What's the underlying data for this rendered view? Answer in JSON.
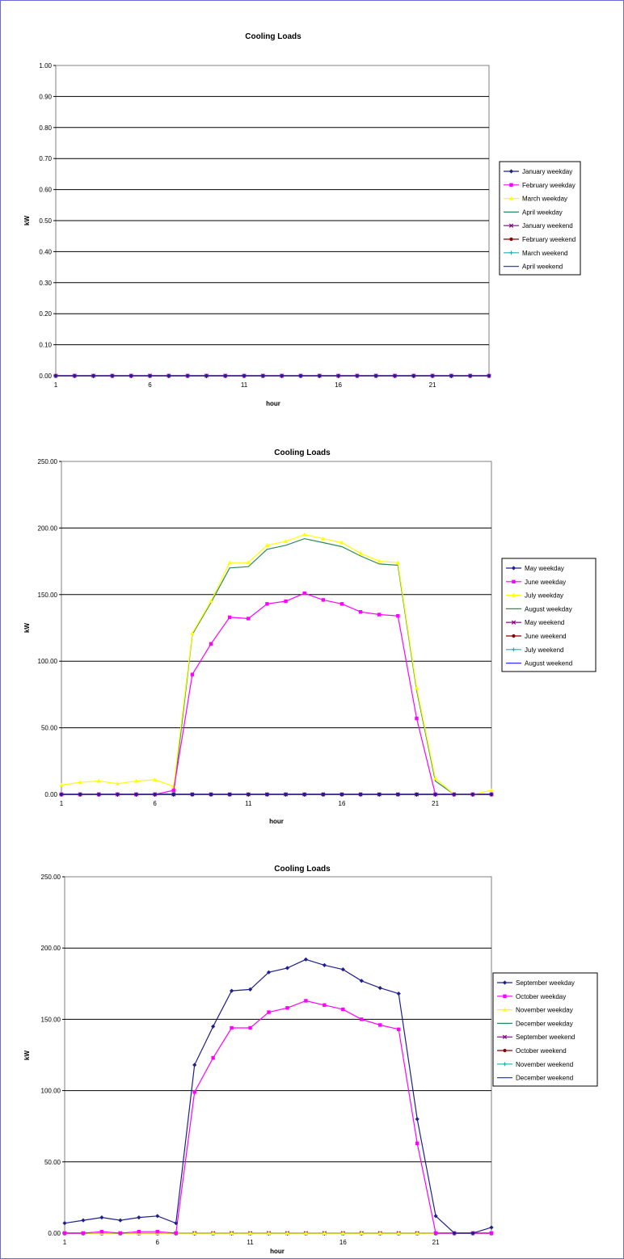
{
  "chart_data": [
    {
      "type": "line",
      "title": "Cooling Loads",
      "xlabel": "hour",
      "ylabel": "kW",
      "ylim": [
        0,
        1
      ],
      "ystep": 0.1,
      "xlim": [
        1,
        24
      ],
      "xticks": [
        1,
        6,
        11,
        16,
        21
      ],
      "grid": "horizontal",
      "legend": "right",
      "series": [
        {
          "name": "January weekday",
          "color": "#1f1f8f",
          "marker": "diamond",
          "values": [
            0,
            0,
            0,
            0,
            0,
            0,
            0,
            0,
            0,
            0,
            0,
            0,
            0,
            0,
            0,
            0,
            0,
            0,
            0,
            0,
            0,
            0,
            0,
            0
          ]
        },
        {
          "name": "February weekday",
          "color": "#ff00ff",
          "marker": "square",
          "values": [
            0,
            0,
            0,
            0,
            0,
            0,
            0,
            0,
            0,
            0,
            0,
            0,
            0,
            0,
            0,
            0,
            0,
            0,
            0,
            0,
            0,
            0,
            0,
            0
          ]
        },
        {
          "name": "March weekday",
          "color": "#ffff00",
          "marker": "triangle",
          "values": [
            0,
            0,
            0,
            0,
            0,
            0,
            0,
            0,
            0,
            0,
            0,
            0,
            0,
            0,
            0,
            0,
            0,
            0,
            0,
            0,
            0,
            0,
            0,
            0
          ]
        },
        {
          "name": "April weekday",
          "color": "#2e8b57",
          "marker": "none",
          "values": [
            0,
            0,
            0,
            0,
            0,
            0,
            0,
            0,
            0,
            0,
            0,
            0,
            0,
            0,
            0,
            0,
            0,
            0,
            0,
            0,
            0,
            0,
            0,
            0
          ]
        },
        {
          "name": "January weekend",
          "color": "#800080",
          "marker": "x",
          "values": [
            0,
            0,
            0,
            0,
            0,
            0,
            0,
            0,
            0,
            0,
            0,
            0,
            0,
            0,
            0,
            0,
            0,
            0,
            0,
            0,
            0,
            0,
            0,
            0
          ]
        },
        {
          "name": "February weekend",
          "color": "#8b0000",
          "marker": "circle",
          "values": [
            0,
            0,
            0,
            0,
            0,
            0,
            0,
            0,
            0,
            0,
            0,
            0,
            0,
            0,
            0,
            0,
            0,
            0,
            0,
            0,
            0,
            0,
            0,
            0
          ]
        },
        {
          "name": "March weekend",
          "color": "#20b2aa",
          "marker": "plus",
          "values": [
            0,
            0,
            0,
            0,
            0,
            0,
            0,
            0,
            0,
            0,
            0,
            0,
            0,
            0,
            0,
            0,
            0,
            0,
            0,
            0,
            0,
            0,
            0,
            0
          ]
        },
        {
          "name": "April weekend",
          "color": "#3333ff",
          "marker": "none",
          "values": [
            0,
            0,
            0,
            0,
            0,
            0,
            0,
            0,
            0,
            0,
            0,
            0,
            0,
            0,
            0,
            0,
            0,
            0,
            0,
            0,
            0,
            0,
            0,
            0
          ]
        }
      ]
    },
    {
      "type": "line",
      "title": "Cooling Loads",
      "xlabel": "hour",
      "ylabel": "kW",
      "ylim": [
        0,
        250
      ],
      "ystep": 50,
      "xlim": [
        1,
        24
      ],
      "xticks": [
        1,
        6,
        11,
        16,
        21
      ],
      "grid": "horizontal",
      "legend": "right",
      "series": [
        {
          "name": "May weekday",
          "color": "#1f1f8f",
          "marker": "diamond",
          "values": [
            0,
            0,
            0,
            0,
            0,
            0,
            0,
            0,
            0,
            0,
            0,
            0,
            0,
            0,
            0,
            0,
            0,
            0,
            0,
            0,
            0,
            0,
            0,
            0
          ]
        },
        {
          "name": "June weekday",
          "color": "#ff00ff",
          "marker": "square",
          "values": [
            0,
            0,
            0,
            0,
            0,
            0,
            3,
            90,
            113,
            133,
            132,
            143,
            145,
            151,
            146,
            143,
            137,
            135,
            134,
            57,
            0,
            0,
            0,
            0
          ]
        },
        {
          "name": "July weekday",
          "color": "#ffff00",
          "marker": "triangle",
          "values": [
            7,
            9,
            10,
            8,
            10,
            11,
            6,
            121,
            145,
            174,
            174,
            187,
            190,
            195,
            192,
            189,
            181,
            175,
            174,
            80,
            12,
            0,
            0,
            3
          ]
        },
        {
          "name": "August weekday",
          "color": "#2e8b57",
          "marker": "none",
          "values": [
            0,
            0,
            0,
            0,
            0,
            0,
            0,
            120,
            144,
            170,
            171,
            184,
            187,
            192,
            189,
            186,
            179,
            173,
            172,
            78,
            10,
            0,
            0,
            0
          ]
        },
        {
          "name": "May weekend",
          "color": "#800080",
          "marker": "x",
          "values": [
            0,
            0,
            0,
            0,
            0,
            0,
            0,
            0,
            0,
            0,
            0,
            0,
            0,
            0,
            0,
            0,
            0,
            0,
            0,
            0,
            0,
            0,
            0,
            0
          ]
        },
        {
          "name": "June weekend",
          "color": "#8b0000",
          "marker": "circle",
          "values": [
            0,
            0,
            0,
            0,
            0,
            0,
            0,
            0,
            0,
            0,
            0,
            0,
            0,
            0,
            0,
            0,
            0,
            0,
            0,
            0,
            0,
            0,
            0,
            0
          ]
        },
        {
          "name": "July weekend",
          "color": "#20b2aa",
          "marker": "plus",
          "values": [
            0,
            0,
            0,
            0,
            0,
            0,
            0,
            0,
            0,
            0,
            0,
            0,
            0,
            0,
            0,
            0,
            0,
            0,
            0,
            0,
            0,
            0,
            0,
            0
          ]
        },
        {
          "name": "August weekend",
          "color": "#3333ff",
          "marker": "none",
          "values": [
            0,
            0,
            0,
            0,
            0,
            0,
            0,
            0,
            0,
            0,
            0,
            0,
            0,
            0,
            0,
            0,
            0,
            0,
            0,
            0,
            0,
            0,
            0,
            0
          ]
        }
      ]
    },
    {
      "type": "line",
      "title": "Cooling Loads",
      "xlabel": "hour",
      "ylabel": "kW",
      "ylim": [
        0,
        250
      ],
      "ystep": 50,
      "xlim": [
        1,
        24
      ],
      "xticks": [
        1,
        6,
        11,
        16,
        21
      ],
      "grid": "horizontal",
      "legend": "right",
      "series": [
        {
          "name": "September weekday",
          "color": "#1f1f8f",
          "marker": "diamond",
          "values": [
            7,
            9,
            11,
            9,
            11,
            12,
            7,
            118,
            145,
            170,
            171,
            183,
            186,
            192,
            188,
            185,
            177,
            172,
            168,
            80,
            12,
            0,
            0,
            4
          ]
        },
        {
          "name": "October weekday",
          "color": "#ff00ff",
          "marker": "square",
          "values": [
            0,
            0,
            1,
            0,
            1,
            1,
            0,
            99,
            123,
            144,
            144,
            155,
            158,
            163,
            160,
            157,
            150,
            146,
            143,
            63,
            0,
            0,
            0,
            0
          ]
        },
        {
          "name": "November weekday",
          "color": "#ffff00",
          "marker": "triangle",
          "values": [
            0,
            0,
            0,
            0,
            0,
            0,
            0,
            0,
            0,
            0,
            0,
            0,
            0,
            0,
            0,
            0,
            0,
            0,
            0,
            0,
            0,
            0,
            0,
            0
          ]
        },
        {
          "name": "December weekday",
          "color": "#2e8b57",
          "marker": "none",
          "values": [
            0,
            0,
            0,
            0,
            0,
            0,
            0,
            0,
            0,
            0,
            0,
            0,
            0,
            0,
            0,
            0,
            0,
            0,
            0,
            0,
            0,
            0,
            0,
            0
          ]
        },
        {
          "name": "September weekend",
          "color": "#800080",
          "marker": "x",
          "values": [
            0,
            0,
            0,
            0,
            0,
            0,
            0,
            0,
            0,
            0,
            0,
            0,
            0,
            0,
            0,
            0,
            0,
            0,
            0,
            0,
            0,
            0,
            0,
            0
          ]
        },
        {
          "name": "October weekend",
          "color": "#8b0000",
          "marker": "circle",
          "values": [
            0,
            0,
            0,
            0,
            0,
            0,
            0,
            0,
            0,
            0,
            0,
            0,
            0,
            0,
            0,
            0,
            0,
            0,
            0,
            0,
            0,
            0,
            0,
            0
          ]
        },
        {
          "name": "November weekend",
          "color": "#20b2aa",
          "marker": "plus",
          "values": [
            0,
            0,
            0,
            0,
            0,
            0,
            0,
            0,
            0,
            0,
            0,
            0,
            0,
            0,
            0,
            0,
            0,
            0,
            0,
            0,
            0,
            0,
            0,
            0
          ]
        },
        {
          "name": "December weekend",
          "color": "#3333ff",
          "marker": "none",
          "values": [
            0,
            0,
            0,
            0,
            0,
            0,
            0,
            0,
            0,
            0,
            0,
            0,
            0,
            0,
            0,
            0,
            0,
            0,
            0,
            0,
            0,
            0,
            0,
            0
          ]
        }
      ]
    }
  ]
}
